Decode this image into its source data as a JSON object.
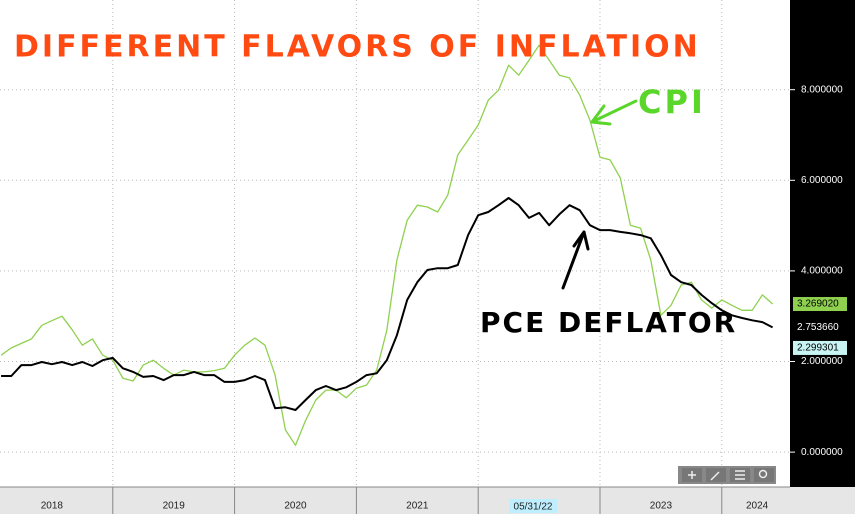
{
  "chart_data": {
    "type": "line",
    "title": "DIFFERENT FLAVORS OF INFLATION",
    "annotations": [
      "PCE DEFLATOR"
    ],
    "x": [
      2018.083,
      2018.167,
      2018.25,
      2018.333,
      2018.417,
      2018.5,
      2018.583,
      2018.667,
      2018.75,
      2018.833,
      2018.917,
      2019,
      2019.083,
      2019.167,
      2019.25,
      2019.333,
      2019.417,
      2019.5,
      2019.583,
      2019.667,
      2019.75,
      2019.833,
      2019.917,
      2020,
      2020.083,
      2020.167,
      2020.25,
      2020.333,
      2020.417,
      2020.5,
      2020.583,
      2020.667,
      2020.75,
      2020.833,
      2020.917,
      2021,
      2021.083,
      2021.167,
      2021.25,
      2021.333,
      2021.417,
      2021.5,
      2021.583,
      2021.667,
      2021.75,
      2021.833,
      2021.917,
      2022,
      2022.083,
      2022.167,
      2022.25,
      2022.333,
      2022.417,
      2022.5,
      2022.583,
      2022.667,
      2022.75,
      2022.833,
      2022.917,
      2023,
      2023.083,
      2023.167,
      2023.25,
      2023.333,
      2023.417,
      2023.5,
      2023.583,
      2023.667,
      2023.75,
      2023.833,
      2023.917,
      2024,
      2024.083,
      2024.167,
      2024.25,
      2024.333,
      2024.417
    ],
    "series": [
      {
        "name": "CPI",
        "color": "#8fd14f",
        "values": [
          2.14,
          2.3,
          2.4,
          2.5,
          2.8,
          2.9,
          3.0,
          2.7,
          2.36,
          2.5,
          2.14,
          2.03,
          1.63,
          1.57,
          1.92,
          2.03,
          1.85,
          1.7,
          1.81,
          1.77,
          1.77,
          1.8,
          1.85,
          2.14,
          2.36,
          2.52,
          2.36,
          1.7,
          0.49,
          0.15,
          0.7,
          1.15,
          1.37,
          1.37,
          1.2,
          1.41,
          1.48,
          1.81,
          2.69,
          4.24,
          5.12,
          5.45,
          5.41,
          5.3,
          5.67,
          6.56,
          6.89,
          7.22,
          7.77,
          7.99,
          8.54,
          8.32,
          8.65,
          8.98,
          8.65,
          8.32,
          8.26,
          7.88,
          7.33,
          6.51,
          6.45,
          6.05,
          5.01,
          4.94,
          4.24,
          3.02,
          3.24,
          3.69,
          3.75,
          3.36,
          3.18,
          3.36,
          3.24,
          3.13,
          3.13,
          3.47,
          3.26902
        ]
      },
      {
        "name": "PCE",
        "color": "#000000",
        "values": [
          1.68,
          1.68,
          1.92,
          1.92,
          1.99,
          1.94,
          1.99,
          1.92,
          1.99,
          1.9,
          2.03,
          2.08,
          1.85,
          1.77,
          1.66,
          1.68,
          1.59,
          1.7,
          1.7,
          1.77,
          1.7,
          1.7,
          1.55,
          1.55,
          1.59,
          1.68,
          1.59,
          0.97,
          0.99,
          0.93,
          1.15,
          1.37,
          1.46,
          1.37,
          1.43,
          1.55,
          1.7,
          1.74,
          2.03,
          2.58,
          3.36,
          3.75,
          4.02,
          4.06,
          4.06,
          4.13,
          4.79,
          5.23,
          5.3,
          5.45,
          5.61,
          5.45,
          5.17,
          5.28,
          5.01,
          5.25,
          5.45,
          5.34,
          5.01,
          4.9,
          4.9,
          4.86,
          4.83,
          4.79,
          4.72,
          4.35,
          3.91,
          3.75,
          3.69,
          3.47,
          3.29,
          3.13,
          3.02,
          2.96,
          2.91,
          2.87,
          2.75366
        ]
      }
    ],
    "markers": [
      {
        "value": 3.26902,
        "label": "3.269020",
        "color": "#8fd14f"
      },
      {
        "value": 2.75366,
        "label": "2.753660",
        "color": "#000000"
      },
      {
        "value": 2.299301,
        "label": "2.299301",
        "color": "#c8f4f4"
      }
    ],
    "xlim": [
      2018.074,
      2024.56
    ],
    "xticks": [
      {
        "value": 2018.5,
        "label": "2018"
      },
      {
        "value": 2019.5,
        "label": "2019"
      },
      {
        "value": 2020.5,
        "label": "2020"
      },
      {
        "value": 2021.5,
        "label": "2021"
      },
      {
        "value": 2023.5,
        "label": "2023"
      },
      {
        "value": 2024.29,
        "label": "2024"
      }
    ],
    "xgrid": [
      2019,
      2020,
      2021,
      2022,
      2023,
      2024
    ],
    "cursor": {
      "value": 2022.45,
      "label": "05/31/22",
      "color": "#bfefff"
    },
    "ylim": [
      -0.77,
      9.98
    ],
    "yticks": [
      {
        "value": 0,
        "label": "0.000000"
      },
      {
        "value": 2,
        "label": "2.000000"
      },
      {
        "value": 4,
        "label": "4.000000"
      },
      {
        "value": 6,
        "label": "6.000000"
      },
      {
        "value": 8,
        "label": "8.000000"
      }
    ],
    "grid": true
  }
}
